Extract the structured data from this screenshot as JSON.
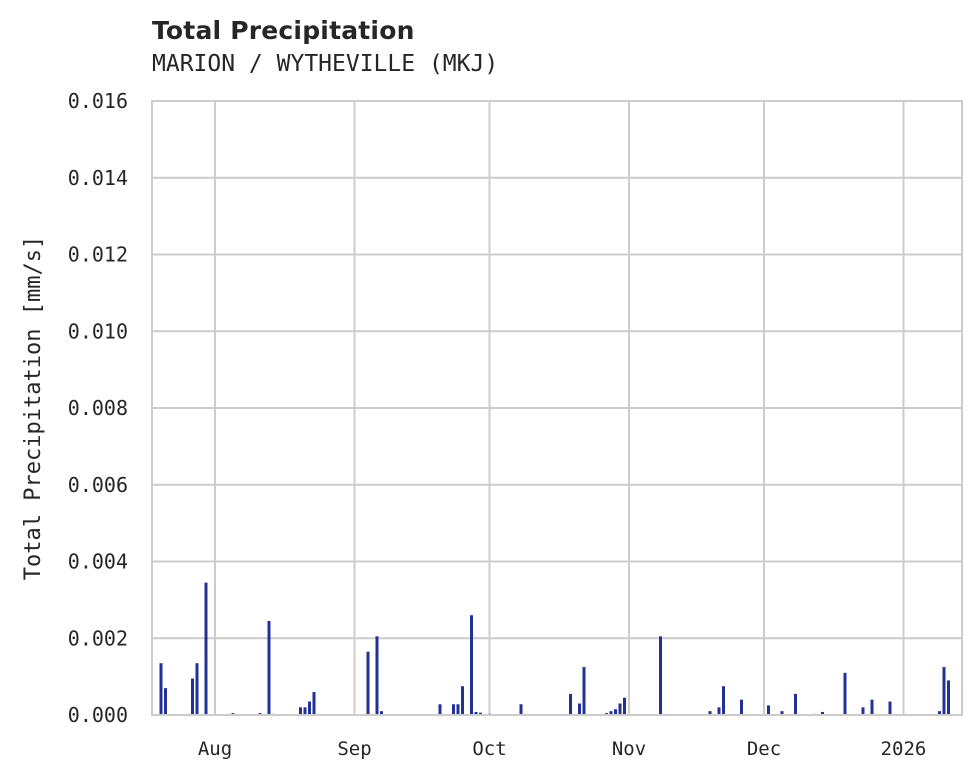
{
  "chart_data": {
    "type": "bar",
    "title": "Total Precipitation",
    "subtitle": "MARION / WYTHEVILLE (MKJ)",
    "xlabel": "",
    "ylabel": "Total Precipitation [mm/s]",
    "ylim": [
      0.0,
      0.016
    ],
    "yticks": [
      "0.000",
      "0.002",
      "0.004",
      "0.006",
      "0.008",
      "0.010",
      "0.012",
      "0.014",
      "0.016"
    ],
    "xticks": [
      "Aug",
      "Sep",
      "Oct",
      "Nov",
      "Dec",
      "2026"
    ],
    "xrange": [
      "2025-07-18",
      "2026-01-14"
    ],
    "grid": true,
    "legend": null,
    "bar_color": "#233194",
    "series": [
      {
        "name": "Total Precipitation",
        "points": [
          {
            "date": "2025-07-20",
            "value": 0.00135
          },
          {
            "date": "2025-07-21",
            "value": 0.0007
          },
          {
            "date": "2025-07-27",
            "value": 0.00095
          },
          {
            "date": "2025-07-28",
            "value": 0.00135
          },
          {
            "date": "2025-07-30",
            "value": 0.00345
          },
          {
            "date": "2025-08-05",
            "value": 5e-05
          },
          {
            "date": "2025-08-11",
            "value": 5e-05
          },
          {
            "date": "2025-08-13",
            "value": 0.00245
          },
          {
            "date": "2025-08-14",
            "value": 3e-05
          },
          {
            "date": "2025-08-20",
            "value": 0.0002
          },
          {
            "date": "2025-08-21",
            "value": 0.0002
          },
          {
            "date": "2025-08-22",
            "value": 0.00035
          },
          {
            "date": "2025-08-23",
            "value": 0.0006
          },
          {
            "date": "2025-09-04",
            "value": 0.00165
          },
          {
            "date": "2025-09-06",
            "value": 0.00205
          },
          {
            "date": "2025-09-07",
            "value": 0.0001
          },
          {
            "date": "2025-09-20",
            "value": 0.00028
          },
          {
            "date": "2025-09-23",
            "value": 0.00028
          },
          {
            "date": "2025-09-24",
            "value": 0.00028
          },
          {
            "date": "2025-09-25",
            "value": 0.00075
          },
          {
            "date": "2025-09-27",
            "value": 0.0026
          },
          {
            "date": "2025-09-28",
            "value": 8e-05
          },
          {
            "date": "2025-09-29",
            "value": 6e-05
          },
          {
            "date": "2025-10-01",
            "value": 3e-05
          },
          {
            "date": "2025-10-08",
            "value": 0.00028
          },
          {
            "date": "2025-10-19",
            "value": 0.00055
          },
          {
            "date": "2025-10-21",
            "value": 0.0003
          },
          {
            "date": "2025-10-22",
            "value": 0.00125
          },
          {
            "date": "2025-10-27",
            "value": 5e-05
          },
          {
            "date": "2025-10-28",
            "value": 0.0001
          },
          {
            "date": "2025-10-29",
            "value": 0.00015
          },
          {
            "date": "2025-10-30",
            "value": 0.0003
          },
          {
            "date": "2025-10-31",
            "value": 0.00045
          },
          {
            "date": "2025-11-08",
            "value": 0.00205
          },
          {
            "date": "2025-11-19",
            "value": 0.0001
          },
          {
            "date": "2025-11-21",
            "value": 0.0002
          },
          {
            "date": "2025-11-22",
            "value": 0.00075
          },
          {
            "date": "2025-11-26",
            "value": 0.0004
          },
          {
            "date": "2025-12-02",
            "value": 0.00025
          },
          {
            "date": "2025-12-05",
            "value": 0.0001
          },
          {
            "date": "2025-12-08",
            "value": 0.00055
          },
          {
            "date": "2025-12-12",
            "value": 3e-05
          },
          {
            "date": "2025-12-14",
            "value": 8e-05
          },
          {
            "date": "2025-12-19",
            "value": 0.0011
          },
          {
            "date": "2025-12-23",
            "value": 0.0002
          },
          {
            "date": "2025-12-25",
            "value": 0.0004
          },
          {
            "date": "2025-12-29",
            "value": 0.00035
          },
          {
            "date": "2026-01-09",
            "value": 0.0001
          },
          {
            "date": "2026-01-10",
            "value": 0.00125
          },
          {
            "date": "2026-01-11",
            "value": 0.0009
          }
        ]
      }
    ]
  }
}
